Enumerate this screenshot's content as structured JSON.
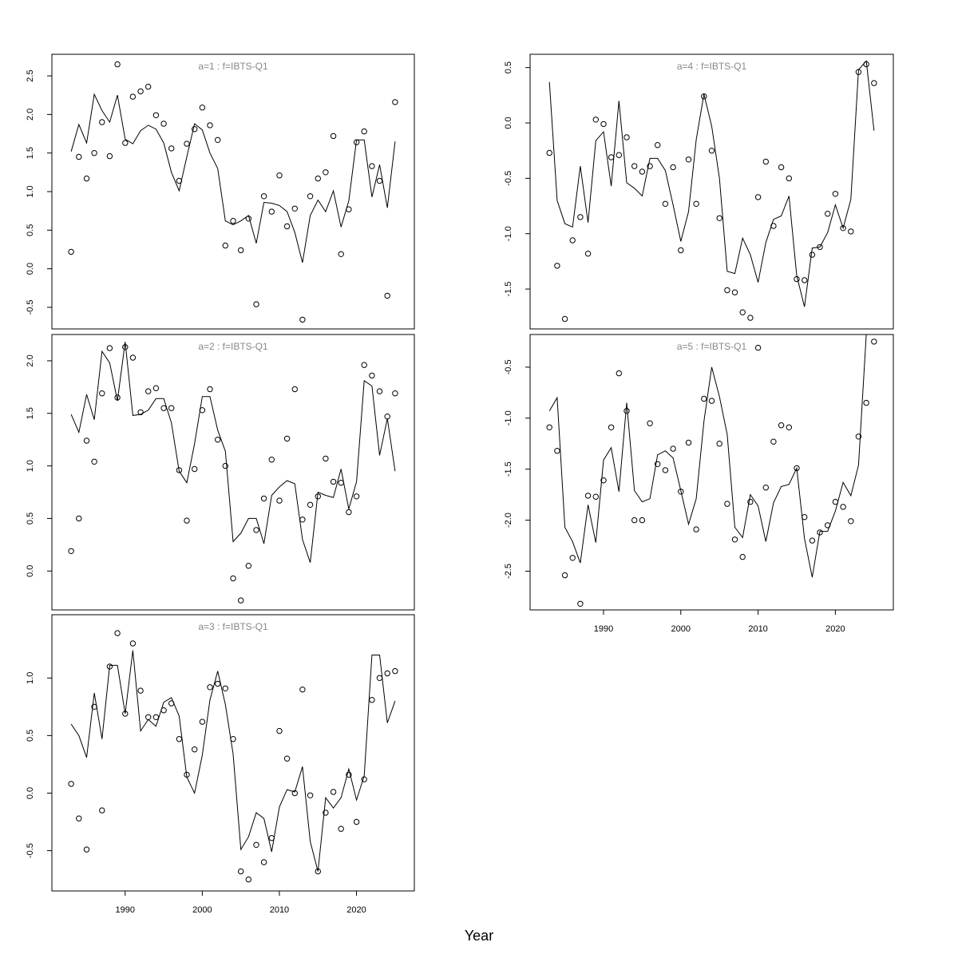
{
  "xlabel": "Year",
  "chart_data": [
    {
      "type": "line",
      "title": "a=1  :  f=IBTS-Q1",
      "xlim": [
        1980.5,
        2027.5
      ],
      "ylim": [
        -0.78,
        2.78
      ],
      "yticks": [
        -0.5,
        0.0,
        0.5,
        1.0,
        1.5,
        2.0,
        2.5
      ],
      "ytick_labels": [
        "-0.5",
        "0.0",
        "0.5",
        "1.0",
        "1.5",
        "2.0",
        "2.5"
      ],
      "xticks": [],
      "xtick_labels": [],
      "x": [
        1983,
        1984,
        1985,
        1986,
        1987,
        1988,
        1989,
        1990,
        1991,
        1992,
        1993,
        1994,
        1995,
        1996,
        1997,
        1998,
        1999,
        2000,
        2001,
        2002,
        2003,
        2004,
        2005,
        2006,
        2007,
        2008,
        2009,
        2010,
        2011,
        2012,
        2013,
        2014,
        2015,
        2016,
        2017,
        2018,
        2019,
        2020,
        2021,
        2022,
        2023,
        2024,
        2025
      ],
      "series": [
        {
          "values": [
            0.22,
            1.45,
            1.17,
            1.5,
            1.9,
            1.46,
            2.65,
            1.63,
            2.23,
            2.3,
            2.36,
            1.99,
            1.88,
            1.56,
            1.14,
            1.62,
            1.81,
            2.09,
            1.86,
            1.67,
            0.3,
            0.62,
            0.24,
            0.65,
            -0.46,
            0.94,
            0.74,
            1.21,
            0.55,
            0.78,
            -0.66,
            0.94,
            1.17,
            1.25,
            1.72,
            0.19,
            0.77,
            1.64,
            1.78,
            1.33,
            1.14,
            -0.35,
            2.16
          ]
        },
        {
          "values": [
            1.52,
            1.87,
            1.63,
            2.26,
            2.05,
            1.9,
            2.25,
            1.68,
            1.62,
            1.79,
            1.86,
            1.81,
            1.63,
            1.25,
            1.01,
            1.45,
            1.88,
            1.8,
            1.5,
            1.3,
            0.62,
            0.57,
            0.62,
            0.69,
            0.33,
            0.86,
            0.85,
            0.82,
            0.74,
            0.47,
            0.08,
            0.69,
            0.89,
            0.74,
            1.01,
            0.54,
            0.88,
            1.67,
            1.67,
            0.93,
            1.35,
            0.79,
            1.65
          ]
        }
      ]
    },
    {
      "type": "line",
      "title": "a=2  :  f=IBTS-Q1",
      "xlim": [
        1980.5,
        2027.5
      ],
      "ylim": [
        -0.37,
        2.25
      ],
      "yticks": [
        0.0,
        0.5,
        1.0,
        1.5,
        2.0
      ],
      "ytick_labels": [
        "0.0",
        "0.5",
        "1.0",
        "1.5",
        "2.0"
      ],
      "xticks": [],
      "xtick_labels": [],
      "x": [
        1983,
        1984,
        1985,
        1986,
        1987,
        1988,
        1989,
        1990,
        1991,
        1992,
        1993,
        1994,
        1995,
        1996,
        1997,
        1998,
        1999,
        2000,
        2001,
        2002,
        2003,
        2004,
        2005,
        2006,
        2007,
        2008,
        2009,
        2010,
        2011,
        2012,
        2013,
        2014,
        2015,
        2016,
        2017,
        2018,
        2019,
        2020,
        2021,
        2022,
        2023,
        2024,
        2025
      ],
      "series": [
        {
          "values": [
            0.19,
            0.5,
            1.24,
            1.04,
            1.69,
            2.12,
            1.65,
            2.13,
            2.03,
            1.51,
            1.71,
            1.74,
            1.55,
            1.55,
            0.96,
            0.48,
            0.97,
            1.53,
            1.73,
            1.25,
            1.0,
            -0.07,
            -0.28,
            0.05,
            0.39,
            0.69,
            1.06,
            0.67,
            1.26,
            1.73,
            0.49,
            0.63,
            0.71,
            1.07,
            0.85,
            0.84,
            0.56,
            0.71,
            1.96,
            1.86,
            1.71,
            1.47,
            1.69
          ]
        },
        {
          "values": [
            1.49,
            1.32,
            1.68,
            1.44,
            2.09,
            1.98,
            1.62,
            2.18,
            1.48,
            1.49,
            1.53,
            1.64,
            1.64,
            1.41,
            0.95,
            0.84,
            1.21,
            1.66,
            1.66,
            1.34,
            1.14,
            0.28,
            0.36,
            0.5,
            0.5,
            0.26,
            0.72,
            0.8,
            0.86,
            0.83,
            0.3,
            0.08,
            0.75,
            0.72,
            0.7,
            0.97,
            0.59,
            0.85,
            1.81,
            1.76,
            1.1,
            1.45,
            0.95
          ]
        }
      ]
    },
    {
      "type": "line",
      "title": "a=3  :  f=IBTS-Q1",
      "xlim": [
        1980.5,
        2027.5
      ],
      "ylim": [
        -0.85,
        1.55
      ],
      "yticks": [
        -0.5,
        0.0,
        0.5,
        1.0
      ],
      "ytick_labels": [
        "-0.5",
        "0.0",
        "0.5",
        "1.0"
      ],
      "xticks": [
        1990,
        2000,
        2010,
        2020
      ],
      "xtick_labels": [
        "1990",
        "2000",
        "2010",
        "2020"
      ],
      "x": [
        1983,
        1984,
        1985,
        1986,
        1987,
        1988,
        1989,
        1990,
        1991,
        1992,
        1993,
        1994,
        1995,
        1996,
        1997,
        1998,
        1999,
        2000,
        2001,
        2002,
        2003,
        2004,
        2005,
        2006,
        2007,
        2008,
        2009,
        2010,
        2011,
        2012,
        2013,
        2014,
        2015,
        2016,
        2017,
        2018,
        2019,
        2020,
        2021,
        2022,
        2023,
        2024,
        2025
      ],
      "series": [
        {
          "values": [
            0.08,
            -0.22,
            -0.49,
            0.75,
            -0.15,
            1.1,
            1.39,
            0.69,
            1.3,
            0.89,
            0.66,
            0.66,
            0.72,
            0.78,
            0.47,
            0.16,
            0.38,
            0.62,
            0.92,
            0.95,
            0.91,
            0.47,
            -0.68,
            -0.75,
            -0.45,
            -0.6,
            -0.39,
            0.54,
            0.3,
            0.0,
            0.9,
            -0.02,
            -0.68,
            -0.17,
            0.01,
            -0.31,
            0.16,
            -0.25,
            0.12,
            0.81,
            1.0,
            1.04,
            1.06
          ]
        },
        {
          "values": [
            0.6,
            0.5,
            0.31,
            0.87,
            0.47,
            1.11,
            1.11,
            0.69,
            1.24,
            0.54,
            0.64,
            0.58,
            0.79,
            0.83,
            0.67,
            0.14,
            0.0,
            0.33,
            0.81,
            1.06,
            0.77,
            0.34,
            -0.49,
            -0.38,
            -0.17,
            -0.22,
            -0.51,
            -0.12,
            0.03,
            0.01,
            0.23,
            -0.42,
            -0.68,
            -0.04,
            -0.13,
            -0.04,
            0.21,
            -0.06,
            0.15,
            1.2,
            1.2,
            0.61,
            0.8
          ]
        }
      ]
    },
    {
      "type": "line",
      "title": "a=4  :  f=IBTS-Q1",
      "xlim": [
        1980.5,
        2027.5
      ],
      "ylim": [
        -1.86,
        0.62
      ],
      "yticks": [
        -1.5,
        -1.0,
        -0.5,
        0.0,
        0.5
      ],
      "ytick_labels": [
        "-1.5",
        "-1.0",
        "-0.5",
        "0.0",
        "0.5"
      ],
      "xticks": [],
      "xtick_labels": [],
      "x": [
        1983,
        1984,
        1985,
        1986,
        1987,
        1988,
        1989,
        1990,
        1991,
        1992,
        1993,
        1994,
        1995,
        1996,
        1997,
        1998,
        1999,
        2000,
        2001,
        2002,
        2003,
        2004,
        2005,
        2006,
        2007,
        2008,
        2009,
        2010,
        2011,
        2012,
        2013,
        2014,
        2015,
        2016,
        2017,
        2018,
        2019,
        2020,
        2021,
        2022,
        2023,
        2024,
        2025
      ],
      "series": [
        {
          "values": [
            -0.27,
            -1.29,
            -1.77,
            -1.06,
            -0.85,
            -1.18,
            0.03,
            -0.01,
            -0.31,
            -0.29,
            -0.13,
            -0.39,
            -0.44,
            -0.39,
            -0.2,
            -0.73,
            -0.4,
            -1.15,
            -0.33,
            -0.73,
            0.24,
            -0.25,
            -0.86,
            -1.51,
            -1.53,
            -1.71,
            -1.76,
            -0.67,
            -0.35,
            -0.93,
            -0.4,
            -0.5,
            -1.41,
            -1.42,
            -1.19,
            -1.12,
            -0.82,
            -0.64,
            -0.95,
            -0.98,
            0.46,
            0.53,
            0.36
          ]
        },
        {
          "values": [
            0.37,
            -0.7,
            -0.91,
            -0.94,
            -0.39,
            -0.9,
            -0.16,
            -0.08,
            -0.57,
            0.2,
            -0.54,
            -0.59,
            -0.66,
            -0.32,
            -0.32,
            -0.43,
            -0.74,
            -1.07,
            -0.8,
            -0.15,
            0.26,
            -0.03,
            -0.5,
            -1.34,
            -1.36,
            -1.04,
            -1.19,
            -1.44,
            -1.08,
            -0.87,
            -0.84,
            -0.66,
            -1.38,
            -1.66,
            -1.13,
            -1.12,
            -0.99,
            -0.74,
            -0.95,
            -0.69,
            0.48,
            0.56,
            -0.07
          ]
        }
      ]
    },
    {
      "type": "line",
      "title": "a=5  :  f=IBTS-Q1",
      "xlim": [
        1980.5,
        2027.5
      ],
      "ylim": [
        -2.88,
        -0.18
      ],
      "yticks": [
        -2.5,
        -2.0,
        -1.5,
        -1.0,
        -0.5
      ],
      "ytick_labels": [
        "-2.5",
        "-2.0",
        "-1.5",
        "-1.0",
        "-0.5"
      ],
      "xticks": [
        1990,
        2000,
        2010,
        2020
      ],
      "xtick_labels": [
        "1990",
        "2000",
        "2010",
        "2020"
      ],
      "x": [
        1983,
        1984,
        1985,
        1986,
        1987,
        1988,
        1989,
        1990,
        1991,
        1992,
        1993,
        1994,
        1995,
        1996,
        1997,
        1998,
        1999,
        2000,
        2001,
        2002,
        2003,
        2004,
        2005,
        2006,
        2007,
        2008,
        2009,
        2010,
        2011,
        2012,
        2013,
        2014,
        2015,
        2016,
        2017,
        2018,
        2019,
        2020,
        2021,
        2022,
        2023,
        2024,
        2025
      ],
      "series": [
        {
          "values": [
            -1.09,
            -1.32,
            -2.54,
            -2.37,
            -2.82,
            -1.76,
            -1.77,
            -1.61,
            -1.09,
            -0.56,
            -0.93,
            -2.0,
            -2.0,
            -1.05,
            -1.45,
            -1.51,
            -1.3,
            -1.72,
            -1.24,
            -2.09,
            -0.81,
            -0.83,
            -1.25,
            -1.84,
            -2.19,
            -2.36,
            -1.82,
            -0.31,
            -1.68,
            -1.23,
            -1.07,
            -1.09,
            -1.49,
            -1.97,
            -2.2,
            -2.12,
            -2.05,
            -1.82,
            -1.87,
            -2.01,
            -1.18,
            -0.85,
            -0.25
          ]
        },
        {
          "values": [
            -0.93,
            -0.8,
            -2.07,
            -2.21,
            -2.42,
            -1.85,
            -2.22,
            -1.41,
            -1.29,
            -1.72,
            -0.85,
            -1.71,
            -1.82,
            -1.79,
            -1.36,
            -1.32,
            -1.39,
            -1.71,
            -2.04,
            -1.79,
            -1.03,
            -0.5,
            -0.79,
            -1.16,
            -2.07,
            -2.17,
            -1.75,
            -1.86,
            -2.21,
            -1.83,
            -1.67,
            -1.65,
            -1.49,
            -2.18,
            -2.56,
            -2.11,
            -2.11,
            -1.91,
            -1.63,
            -1.76,
            -1.46,
            -0.18,
            -0.12
          ]
        }
      ]
    }
  ]
}
